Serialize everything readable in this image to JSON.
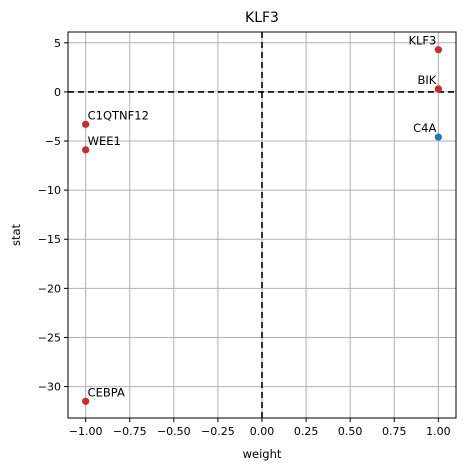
{
  "chart_data": {
    "type": "scatter",
    "title": "KLF3",
    "xlabel": "weight",
    "ylabel": "stat",
    "xlim": [
      -1.1,
      1.1
    ],
    "ylim": [
      -33.2,
      6.1
    ],
    "xticks": [
      -1.0,
      -0.75,
      -0.5,
      -0.25,
      0.0,
      0.25,
      0.5,
      0.75,
      1.0
    ],
    "xtick_labels": [
      "−1.00",
      "−0.75",
      "−0.50",
      "−0.25",
      "0.00",
      "0.25",
      "0.50",
      "0.75",
      "1.00"
    ],
    "yticks": [
      5,
      0,
      -5,
      -10,
      -15,
      -20,
      -25,
      -30
    ],
    "ytick_labels": [
      "5",
      "0",
      "−5",
      "−10",
      "−15",
      "−20",
      "−25",
      "−30"
    ],
    "grid": true,
    "reference_lines": {
      "x": 0,
      "y": 0,
      "style": "dashed",
      "color": "#000000"
    },
    "points": [
      {
        "label": "KLF3",
        "x": 1.0,
        "y": 4.3,
        "color": "#d62728",
        "label_side": "left"
      },
      {
        "label": "BIK",
        "x": 1.0,
        "y": 0.3,
        "color": "#d62728",
        "label_side": "left"
      },
      {
        "label": "C4A",
        "x": 1.0,
        "y": -4.6,
        "color": "#1f77b4",
        "label_side": "left"
      },
      {
        "label": "C1QTNF12",
        "x": -1.0,
        "y": -3.3,
        "color": "#d62728",
        "label_side": "right"
      },
      {
        "label": "WEE1",
        "x": -1.0,
        "y": -5.9,
        "color": "#d62728",
        "label_side": "right"
      },
      {
        "label": "CEBPA",
        "x": -1.0,
        "y": -31.5,
        "color": "#d62728",
        "label_side": "right"
      }
    ]
  },
  "colors": {
    "grid": "#b0b0b0",
    "axes": "#000000",
    "background": "#ffffff"
  }
}
